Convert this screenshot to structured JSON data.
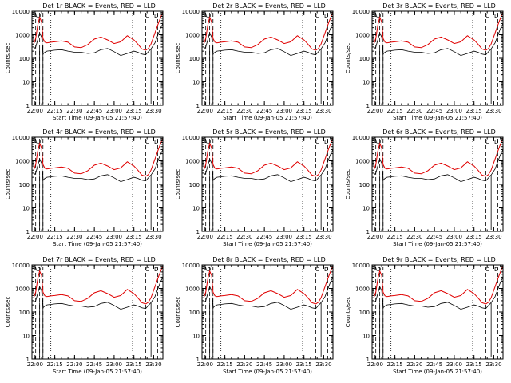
{
  "colors": {
    "events": "#000000",
    "lld": "#e00000",
    "axis": "#000000"
  },
  "chart_data": [
    {
      "type": "line",
      "title": "Det 1r BLACK = Events, RED = LLD",
      "xlabel": "Start Time (09-Jan-05 21:57:40)",
      "ylabel": "Counts/sec",
      "yscale": "log",
      "ylim": [
        1,
        10000
      ],
      "xlim": [
        "21:57:40",
        "23:37:00"
      ],
      "x_ticks": [
        "22:00",
        "22:15",
        "22:30",
        "22:45",
        "23:00",
        "23:15",
        "23:30"
      ],
      "y_ticks": [
        "1",
        "10",
        "100",
        "1000",
        "10000"
      ],
      "flags": [
        "A0",
        "C",
        "D"
      ],
      "series": [
        {
          "name": "Events",
          "color": "black",
          "note": "segmented by attenuator periods"
        },
        {
          "name": "LLD",
          "color": "red"
        }
      ]
    },
    {
      "type": "line",
      "title": "Det 2r BLACK = Events, RED = LLD",
      "xlabel": "Start Time (09-Jan-05 21:57:40)",
      "ylabel": "Counts/sec",
      "yscale": "log",
      "ylim": [
        1,
        10000
      ],
      "xlim": [
        "21:57:40",
        "23:37:00"
      ],
      "x_ticks": [
        "22:00",
        "22:15",
        "22:30",
        "22:45",
        "23:00",
        "23:15",
        "23:30"
      ],
      "y_ticks": [
        "1",
        "10",
        "100",
        "1000",
        "10000"
      ],
      "flags": [
        "A0",
        "C",
        "D"
      ]
    },
    {
      "type": "line",
      "title": "Det 3r BLACK = Events, RED = LLD",
      "xlabel": "Start Time (09-Jan-05 21:57:40)",
      "ylabel": "Counts/sec",
      "yscale": "log",
      "ylim": [
        1,
        10000
      ],
      "xlim": [
        "21:57:40",
        "23:37:00"
      ],
      "x_ticks": [
        "22:00",
        "22:15",
        "22:30",
        "22:45",
        "23:00",
        "23:15",
        "23:30"
      ],
      "y_ticks": [
        "1",
        "10",
        "100",
        "1000",
        "10000"
      ],
      "flags": [
        "A0",
        "C",
        "D"
      ]
    },
    {
      "type": "line",
      "title": "Det 4r BLACK = Events, RED = LLD",
      "xlabel": "Start Time (09-Jan-05 21:57:40)",
      "ylabel": "Counts/sec",
      "yscale": "log",
      "ylim": [
        1,
        10000
      ],
      "xlim": [
        "21:57:40",
        "23:37:00"
      ],
      "x_ticks": [
        "22:00",
        "22:15",
        "22:30",
        "22:45",
        "23:00",
        "23:15",
        "23:30"
      ],
      "y_ticks": [
        "1",
        "10",
        "100",
        "1000",
        "10000"
      ],
      "flags": [
        "A0",
        "C",
        "D"
      ]
    },
    {
      "type": "line",
      "title": "Det 5r BLACK = Events, RED = LLD",
      "xlabel": "Start Time (09-Jan-05 21:57:40)",
      "ylabel": "Counts/sec",
      "yscale": "log",
      "ylim": [
        1,
        10000
      ],
      "xlim": [
        "21:57:40",
        "23:37:00"
      ],
      "x_ticks": [
        "22:00",
        "22:15",
        "22:30",
        "22:45",
        "23:00",
        "23:15",
        "23:30"
      ],
      "y_ticks": [
        "1",
        "10",
        "100",
        "1000",
        "10000"
      ],
      "flags": [
        "A0",
        "C",
        "D"
      ]
    },
    {
      "type": "line",
      "title": "Det 6r BLACK = Events, RED = LLD",
      "xlabel": "Start Time (09-Jan-05 21:57:40)",
      "ylabel": "Counts/sec",
      "yscale": "log",
      "ylim": [
        1,
        10000
      ],
      "xlim": [
        "21:57:40",
        "23:37:00"
      ],
      "x_ticks": [
        "22:00",
        "22:15",
        "22:30",
        "22:45",
        "23:00",
        "23:15",
        "23:30"
      ],
      "y_ticks": [
        "1",
        "10",
        "100",
        "1000",
        "10000"
      ],
      "flags": [
        "A0",
        "C",
        "D"
      ]
    },
    {
      "type": "line",
      "title": "Det 7r BLACK = Events, RED = LLD",
      "xlabel": "Start Time (09-Jan-05 21:57:40)",
      "ylabel": "Counts/sec",
      "yscale": "log",
      "ylim": [
        1,
        10000
      ],
      "xlim": [
        "21:57:40",
        "23:37:00"
      ],
      "x_ticks": [
        "22:00",
        "22:15",
        "22:30",
        "22:45",
        "23:00",
        "23:15",
        "23:30"
      ],
      "y_ticks": [
        "1",
        "10",
        "100",
        "1000",
        "10000"
      ],
      "flags": [
        "A0",
        "C",
        "D"
      ]
    },
    {
      "type": "line",
      "title": "Det 8r BLACK = Events, RED = LLD",
      "xlabel": "Start Time (09-Jan-05 21:57:40)",
      "ylabel": "Counts/sec",
      "yscale": "log",
      "ylim": [
        1,
        10000
      ],
      "xlim": [
        "21:57:40",
        "23:37:00"
      ],
      "x_ticks": [
        "22:00",
        "22:15",
        "22:30",
        "22:45",
        "23:00",
        "23:15",
        "23:30"
      ],
      "y_ticks": [
        "1",
        "10",
        "100",
        "1000",
        "10000"
      ],
      "flags": [
        "A0",
        "C",
        "D"
      ]
    },
    {
      "type": "line",
      "title": "Det 9r BLACK = Events, RED = LLD",
      "xlabel": "Start Time (09-Jan-05 21:57:40)",
      "ylabel": "Counts/sec",
      "yscale": "log",
      "ylim": [
        1,
        10000
      ],
      "xlim": [
        "21:57:40",
        "23:37:00"
      ],
      "x_ticks": [
        "22:00",
        "22:15",
        "22:30",
        "22:45",
        "23:00",
        "23:15",
        "23:30"
      ],
      "y_ticks": [
        "1",
        "10",
        "100",
        "1000",
        "10000"
      ],
      "flags": [
        "A0",
        "C",
        "D"
      ]
    }
  ],
  "shared_series": {
    "x": [
      "21:59:00",
      "22:00:30",
      "22:02:00",
      "22:03:30",
      "22:05:00",
      "22:06:00",
      "22:07:30",
      "22:09:00",
      "22:12:00",
      "22:15:00",
      "22:20:00",
      "22:25:00",
      "22:30:00",
      "22:35:00",
      "22:40:00",
      "22:45:00",
      "22:50:00",
      "22:55:00",
      "23:00:00",
      "23:05:00",
      "23:10:00",
      "23:15:00",
      "23:18:00",
      "23:21:00",
      "23:24:00",
      "23:26:00",
      "23:28:00",
      "23:31:00",
      "23:33:00",
      "23:35:00",
      "23:37:00"
    ],
    "lld": [
      400,
      700,
      2500,
      5500,
      3500,
      700,
      480,
      450,
      480,
      500,
      550,
      480,
      300,
      280,
      380,
      650,
      800,
      600,
      420,
      500,
      900,
      600,
      400,
      250,
      220,
      260,
      400,
      1200,
      2500,
      5000,
      9000
    ],
    "events": [
      250,
      300,
      600,
      1200,
      800,
      150,
      180,
      200,
      210,
      220,
      230,
      200,
      180,
      180,
      160,
      170,
      230,
      260,
      190,
      130,
      160,
      200,
      180,
      150,
      140,
      190,
      250,
      450,
      900,
      1800,
      3000
    ]
  }
}
